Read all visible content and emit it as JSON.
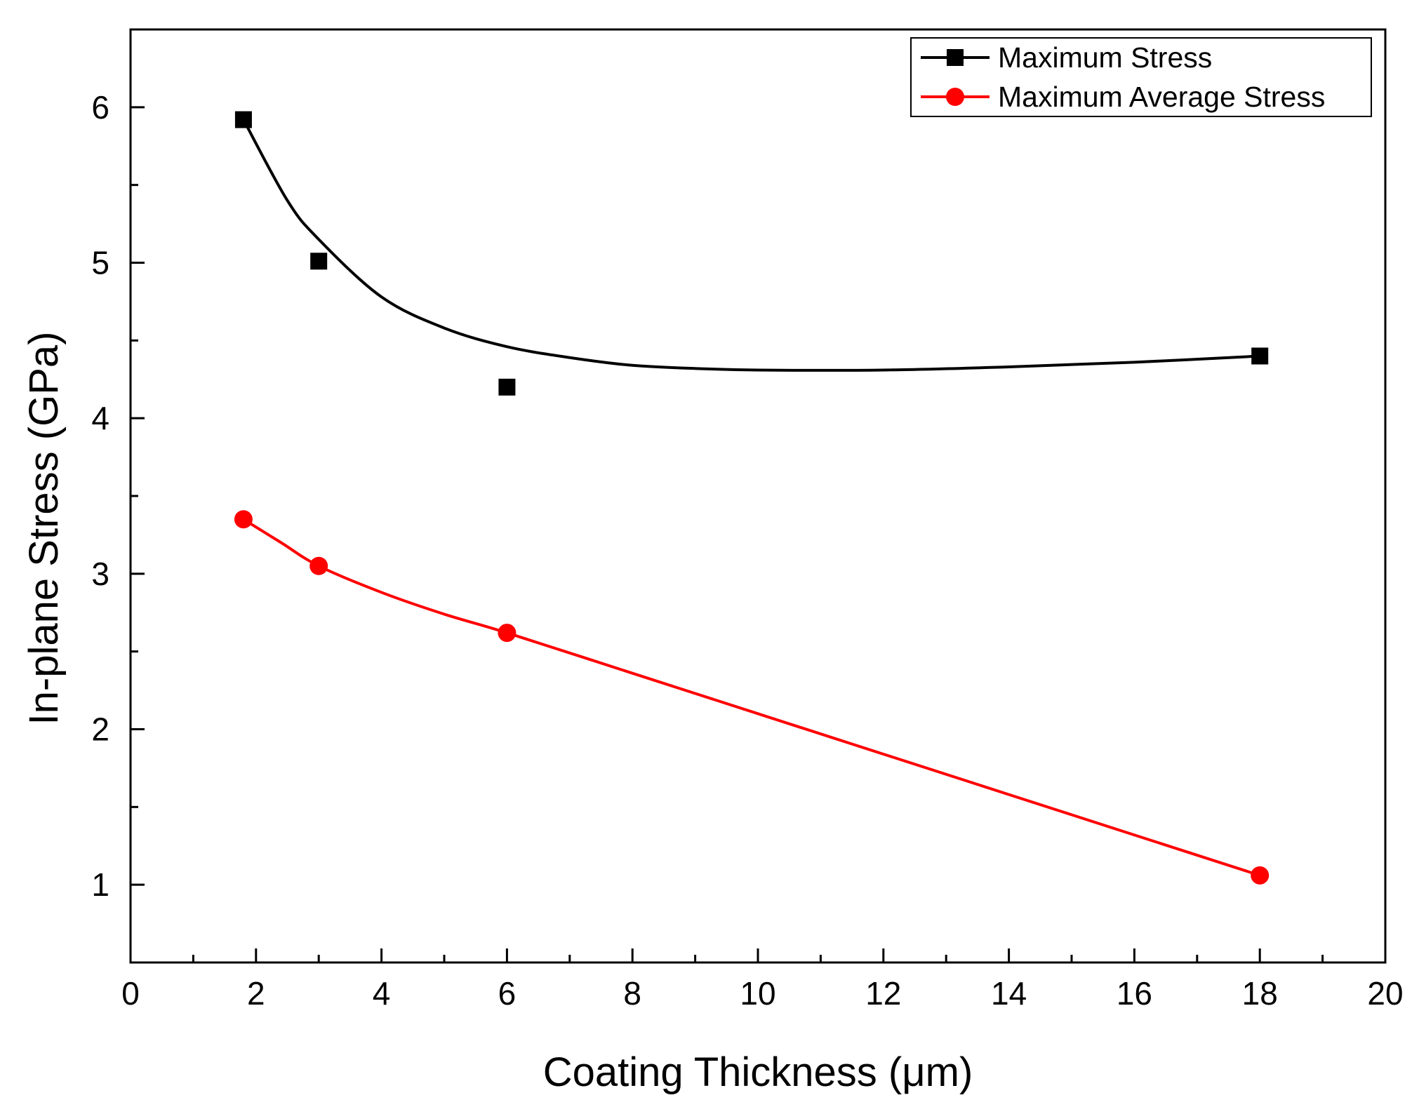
{
  "chart_data": {
    "type": "line",
    "title": "",
    "xlabel": "Coating Thickness (μm)",
    "ylabel": "In-plane Stress (GPa)",
    "xlim": [
      0,
      20
    ],
    "ylim": [
      0.5,
      6.5
    ],
    "x_ticks": [
      "0",
      "2",
      "4",
      "6",
      "8",
      "10",
      "12",
      "14",
      "16",
      "18",
      "20"
    ],
    "y_ticks": [
      "1",
      "2",
      "3",
      "4",
      "5",
      "6"
    ],
    "grid": false,
    "legend_position": "top-right",
    "series": [
      {
        "name": "Maximum Stress",
        "color": "#000000",
        "marker": "square",
        "x": [
          1.8,
          3,
          6,
          18
        ],
        "y": [
          5.92,
          5.01,
          4.2,
          4.4
        ],
        "fit_curve": {
          "x": [
            1.8,
            2.5,
            3,
            4,
            5,
            6,
            7,
            8,
            9,
            10,
            12,
            14,
            16,
            18
          ],
          "y": [
            5.92,
            5.4,
            5.15,
            4.78,
            4.58,
            4.46,
            4.39,
            4.34,
            4.32,
            4.31,
            4.31,
            4.33,
            4.36,
            4.4
          ]
        }
      },
      {
        "name": "Maximum Average Stress",
        "color": "#ff0000",
        "marker": "circle",
        "x": [
          1.8,
          3,
          6,
          18
        ],
        "y": [
          3.35,
          3.05,
          2.62,
          1.06
        ],
        "fit_curve": {
          "x": [
            1.8,
            2.4,
            3,
            4,
            5,
            6,
            8,
            10,
            12,
            14,
            16,
            18
          ],
          "y": [
            3.35,
            3.2,
            3.05,
            2.88,
            2.74,
            2.62,
            2.36,
            2.1,
            1.84,
            1.58,
            1.32,
            1.06
          ]
        }
      }
    ]
  }
}
